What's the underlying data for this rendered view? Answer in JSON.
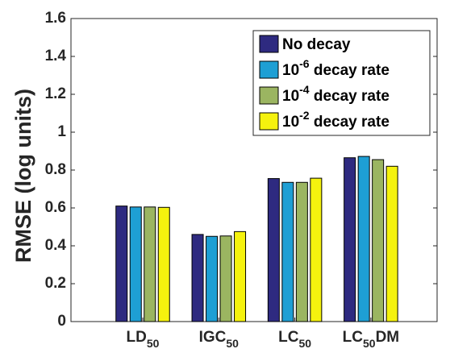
{
  "chart_data": {
    "type": "bar",
    "ylabel": "RMSE (log units)",
    "ylim": [
      0,
      1.6
    ],
    "yticks": [
      0,
      0.2,
      0.4,
      0.6,
      0.8,
      1,
      1.2,
      1.4,
      1.6
    ],
    "ytick_labels": [
      "0",
      "0.2",
      "0.4",
      "0.6",
      "0.8",
      "1",
      "1.2",
      "1.4",
      "1.6"
    ],
    "categories": [
      {
        "base": "LD",
        "sub": "50",
        "suffix": ""
      },
      {
        "base": "IGC",
        "sub": "50",
        "suffix": ""
      },
      {
        "base": "LC",
        "sub": "50",
        "suffix": ""
      },
      {
        "base": "LC",
        "sub": "50",
        "suffix": "DM"
      }
    ],
    "series": [
      {
        "key": "no_decay",
        "legend": {
          "pre": "No decay",
          "sup": "",
          "post": ""
        },
        "color": "#2e2a80",
        "values": [
          0.61,
          0.46,
          0.755,
          0.865
        ]
      },
      {
        "key": "decay_1e-6",
        "legend": {
          "pre": "10",
          "sup": "-6",
          "post": " decay rate"
        },
        "color": "#1e9fd4",
        "values": [
          0.605,
          0.45,
          0.735,
          0.872
        ]
      },
      {
        "key": "decay_1e-4",
        "legend": {
          "pre": "10",
          "sup": "-4",
          "post": " decay rate"
        },
        "color": "#9bb561",
        "values": [
          0.605,
          0.452,
          0.735,
          0.855
        ]
      },
      {
        "key": "decay_1e-2",
        "legend": {
          "pre": "10",
          "sup": "-2",
          "post": " decay rate"
        },
        "color": "#f5f20e",
        "values": [
          0.603,
          0.475,
          0.757,
          0.82
        ]
      }
    ],
    "legend_position": "top-right",
    "grid": false
  }
}
